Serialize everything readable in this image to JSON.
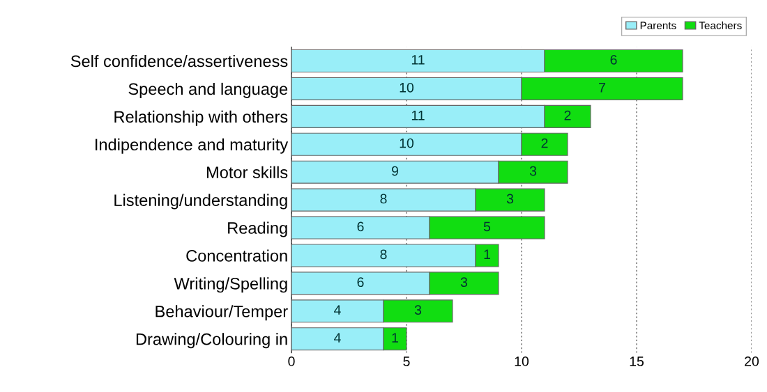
{
  "chart_data": {
    "type": "bar",
    "orientation": "horizontal",
    "stacked": true,
    "data_labels": true,
    "grid": "x",
    "legend": "top right",
    "categories": [
      "Self confidence/assertiveness",
      "Speech and language",
      "Relationship with others",
      "Indipendence and maturity",
      "Motor skills",
      "Listening/understanding",
      "Reading",
      "Concentration",
      "Writing/Spelling",
      "Behaviour/Temper",
      "Drawing/Colouring in"
    ],
    "series": [
      {
        "name": "Parents",
        "color": "#99eef8",
        "values": [
          11,
          10,
          11,
          10,
          9,
          8,
          6,
          8,
          6,
          4,
          4
        ]
      },
      {
        "name": "Teachers",
        "color": "#11dd11",
        "values": [
          6,
          7,
          2,
          2,
          3,
          3,
          5,
          1,
          3,
          3,
          1
        ]
      }
    ],
    "xlim": [
      0,
      20
    ],
    "xticks": [
      0,
      5,
      10,
      15,
      20
    ]
  }
}
